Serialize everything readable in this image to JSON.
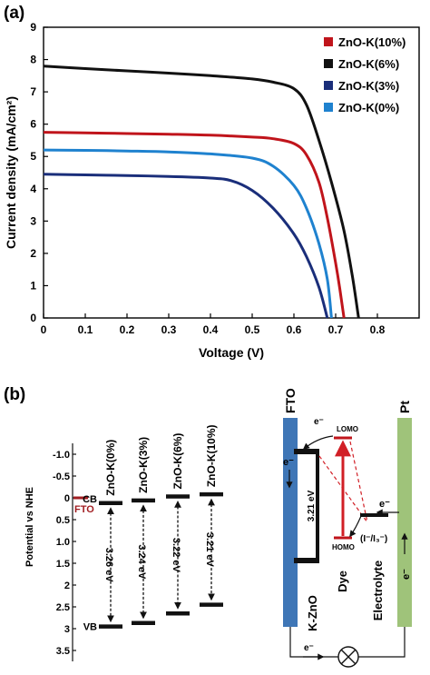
{
  "panels": {
    "a": "(a)",
    "b": "(b)"
  },
  "chart_data": [
    {
      "type": "line",
      "panel": "(a)",
      "xlabel": "Voltage (V)",
      "ylabel": "Current density (mA/cm²)",
      "xlim": [
        0,
        0.9
      ],
      "ylim": [
        0,
        9
      ],
      "xticks": [
        "0",
        "0.1",
        "0.2",
        "0.3",
        "0.4",
        "0.5",
        "0.6",
        "0.7",
        "0.8"
      ],
      "yticks": [
        "0",
        "1",
        "2",
        "3",
        "4",
        "5",
        "6",
        "7",
        "8",
        "9"
      ],
      "grid": false,
      "legend": "top-right",
      "series": [
        {
          "name": "ZnO-K(10%)",
          "color": "#c0141b",
          "points": [
            [
              0,
              5.75
            ],
            [
              0.1,
              5.73
            ],
            [
              0.2,
              5.71
            ],
            [
              0.3,
              5.69
            ],
            [
              0.4,
              5.66
            ],
            [
              0.5,
              5.6
            ],
            [
              0.55,
              5.55
            ],
            [
              0.6,
              5.4
            ],
            [
              0.63,
              5.05
            ],
            [
              0.66,
              4.2
            ],
            [
              0.68,
              3.1
            ],
            [
              0.7,
              1.7
            ],
            [
              0.71,
              0.9
            ],
            [
              0.72,
              0
            ]
          ]
        },
        {
          "name": "ZnO-K(6%)",
          "color": "#111111",
          "points": [
            [
              0,
              7.8
            ],
            [
              0.1,
              7.72
            ],
            [
              0.2,
              7.65
            ],
            [
              0.3,
              7.58
            ],
            [
              0.4,
              7.5
            ],
            [
              0.5,
              7.4
            ],
            [
              0.55,
              7.3
            ],
            [
              0.6,
              7.1
            ],
            [
              0.63,
              6.6
            ],
            [
              0.66,
              5.5
            ],
            [
              0.69,
              4.2
            ],
            [
              0.72,
              2.7
            ],
            [
              0.74,
              1.3
            ],
            [
              0.755,
              0
            ]
          ]
        },
        {
          "name": "ZnO-K(3%)",
          "color": "#1a2e7a",
          "points": [
            [
              0,
              4.45
            ],
            [
              0.1,
              4.43
            ],
            [
              0.2,
              4.41
            ],
            [
              0.3,
              4.38
            ],
            [
              0.4,
              4.33
            ],
            [
              0.45,
              4.25
            ],
            [
              0.5,
              3.95
            ],
            [
              0.55,
              3.4
            ],
            [
              0.6,
              2.6
            ],
            [
              0.63,
              1.9
            ],
            [
              0.66,
              0.95
            ],
            [
              0.68,
              0
            ]
          ]
        },
        {
          "name": "ZnO-K(0%)",
          "color": "#1f82cf",
          "points": [
            [
              0,
              5.2
            ],
            [
              0.1,
              5.19
            ],
            [
              0.2,
              5.17
            ],
            [
              0.3,
              5.14
            ],
            [
              0.4,
              5.08
            ],
            [
              0.5,
              4.95
            ],
            [
              0.55,
              4.7
            ],
            [
              0.6,
              4.1
            ],
            [
              0.63,
              3.4
            ],
            [
              0.66,
              2.3
            ],
            [
              0.68,
              1.2
            ],
            [
              0.69,
              0
            ]
          ]
        }
      ]
    },
    {
      "type": "diagram",
      "panel": "(b)",
      "ylabel": "Potential vs NHE",
      "ylim": [
        -1.5,
        3.5
      ],
      "ytick_values": [
        -1.0,
        -0.5,
        0,
        0.5,
        1.0,
        1.5,
        2,
        2.5,
        3,
        3.5
      ],
      "ytick_labels": [
        "-1.0",
        "-0.5",
        "0",
        "0.5",
        "1.0",
        "1.5",
        "2",
        "2.5",
        "3",
        "3.5"
      ],
      "fto": {
        "label": "FTO",
        "level": 0,
        "color": "#a11d21"
      },
      "cb_label": "CB",
      "vb_label": "VB",
      "samples": [
        {
          "name": "ZnO-K(0%)",
          "cb": 0.12,
          "vb": 2.95,
          "gap": "3.26 eV"
        },
        {
          "name": "ZnO-K(3%)",
          "cb": 0.06,
          "vb": 2.87,
          "gap": "3.24 eV"
        },
        {
          "name": "ZnO-K(6%)",
          "cb": -0.03,
          "vb": 2.65,
          "gap": "3.22 eV"
        },
        {
          "name": "ZnO-K(10%)",
          "cb": -0.08,
          "vb": 2.45,
          "gap": "3.21 eV"
        }
      ],
      "device": {
        "fto_label": "FTO",
        "pt_label": "Pt",
        "kzno_label": "K-ZnO",
        "kzno_gap": "3.21 eV",
        "dye_label": "Dye",
        "electrolyte_label": "Electrolyte",
        "lomo_label": "LOMO",
        "homo_label": "HOMO",
        "redox_label": "(I⁻/I₃⁻)",
        "electron_label": "e⁻"
      }
    }
  ]
}
